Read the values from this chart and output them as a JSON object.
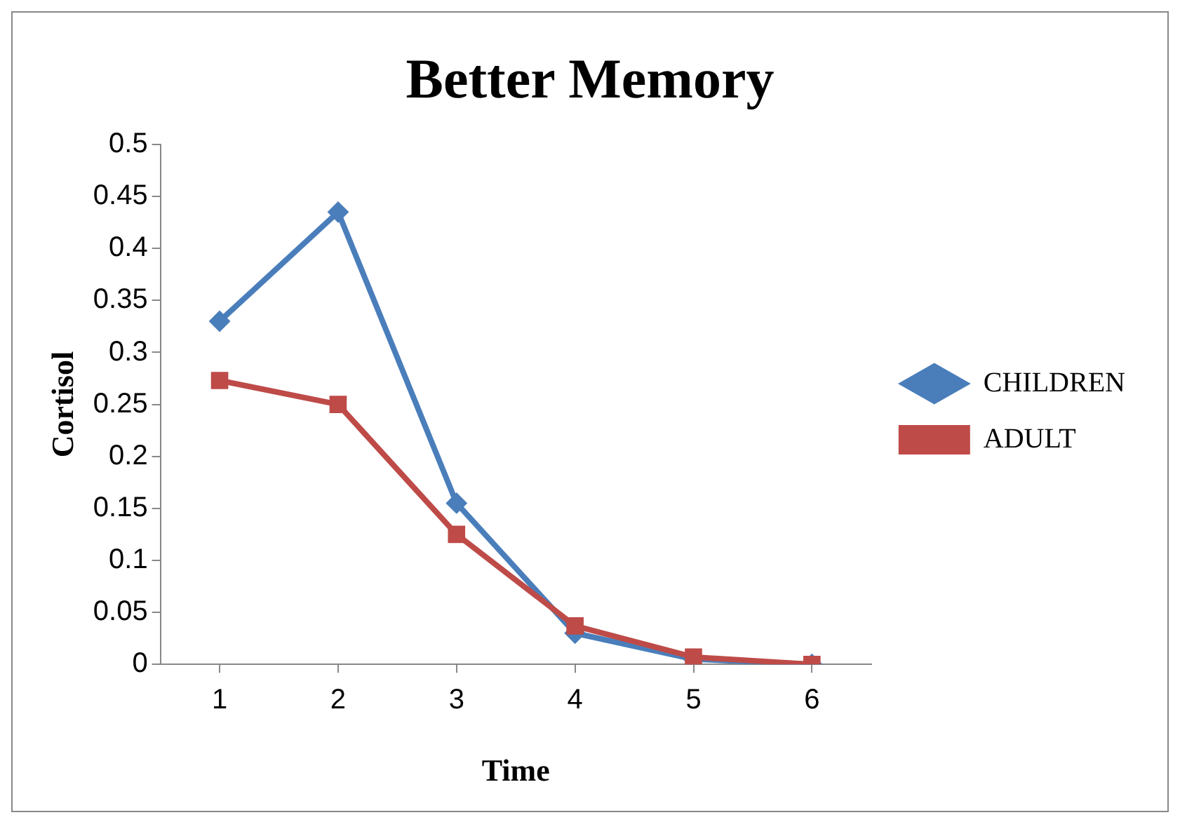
{
  "chart_data": {
    "type": "line",
    "title": "Better Memory",
    "xlabel": "Time",
    "ylabel": "Cortisol",
    "categories": [
      "1",
      "2",
      "3",
      "4",
      "5",
      "6"
    ],
    "series": [
      {
        "name": "CHILDREN",
        "color": "#4a7ebb",
        "marker": "diamond",
        "values": [
          0.33,
          0.435,
          0.155,
          0.03,
          0.005,
          0
        ]
      },
      {
        "name": "ADULT",
        "color": "#be4b48",
        "marker": "square",
        "values": [
          0.273,
          0.25,
          0.125,
          0.037,
          0.007,
          0
        ]
      }
    ],
    "ylim": [
      0,
      0.5
    ],
    "yticks": [
      0,
      0.05,
      0.1,
      0.15,
      0.2,
      0.25,
      0.3,
      0.35,
      0.4,
      0.45,
      0.5
    ],
    "grid": false,
    "legend": "right",
    "line_style": "solid"
  }
}
